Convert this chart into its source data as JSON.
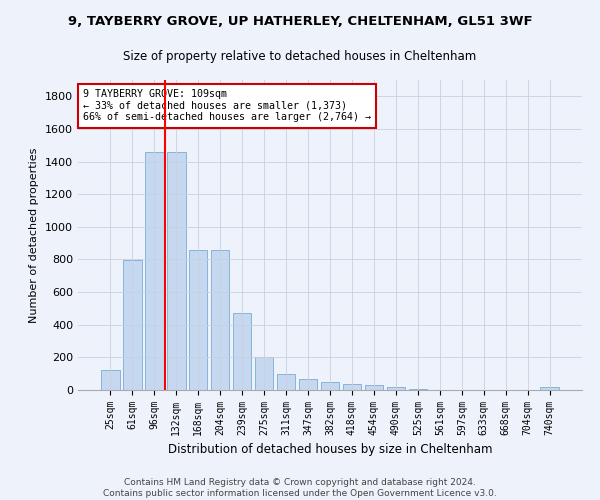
{
  "title1": "9, TAYBERRY GROVE, UP HATHERLEY, CHELTENHAM, GL51 3WF",
  "title2": "Size of property relative to detached houses in Cheltenham",
  "xlabel": "Distribution of detached houses by size in Cheltenham",
  "ylabel": "Number of detached properties",
  "footer1": "Contains HM Land Registry data © Crown copyright and database right 2024.",
  "footer2": "Contains public sector information licensed under the Open Government Licence v3.0.",
  "categories": [
    "25sqm",
    "61sqm",
    "96sqm",
    "132sqm",
    "168sqm",
    "204sqm",
    "239sqm",
    "275sqm",
    "311sqm",
    "347sqm",
    "382sqm",
    "418sqm",
    "454sqm",
    "490sqm",
    "525sqm",
    "561sqm",
    "597sqm",
    "633sqm",
    "668sqm",
    "704sqm",
    "740sqm"
  ],
  "values": [
    120,
    795,
    1460,
    1460,
    860,
    860,
    470,
    200,
    100,
    65,
    50,
    35,
    30,
    20,
    5,
    0,
    0,
    0,
    0,
    0,
    20
  ],
  "bar_color": "#c5d8f0",
  "bar_edge_color": "#7aadd4",
  "ylim": [
    0,
    1900
  ],
  "yticks": [
    0,
    200,
    400,
    600,
    800,
    1000,
    1200,
    1400,
    1600,
    1800
  ],
  "vline_x": 2.5,
  "annotation_line1": "9 TAYBERRY GROVE: 109sqm",
  "annotation_line2": "← 33% of detached houses are smaller (1,373)",
  "annotation_line3": "66% of semi-detached houses are larger (2,764) →",
  "annotation_box_color": "#ffffff",
  "annotation_box_edge": "#cc0000",
  "bg_color": "#eef2fb"
}
